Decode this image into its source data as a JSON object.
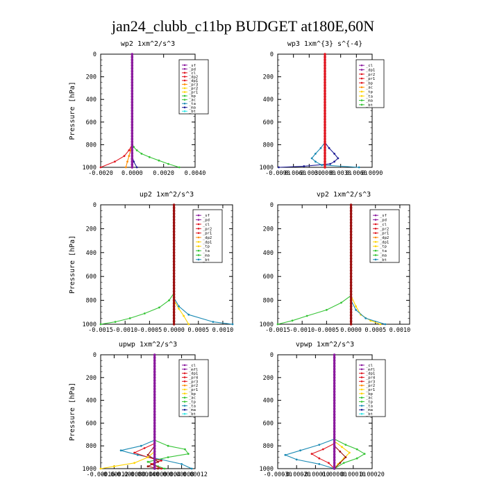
{
  "title": "jan24_clubb_c11bp  BUDGET at180E,60N",
  "colors": {
    "purple": "#8b1a9e",
    "red": "#e0141e",
    "orange": "#ff8c00",
    "yellow": "#ffd400",
    "green": "#35c435",
    "teal": "#1a8ab4",
    "navy": "#1e1e96",
    "cyan": "#2ee6e6",
    "darkred": "#9b1010"
  },
  "chart_data": [
    {
      "type": "line",
      "title": "wp2  1xm^2/s^3",
      "ylabel": "Pressure [hPa]",
      "y_ticks": [
        0,
        200,
        400,
        600,
        800,
        1000
      ],
      "x_tick_labels": [
        "-0.0020",
        "0.0000",
        "0.0020",
        "0.0040"
      ],
      "xlim": [
        -0.002,
        0.004
      ],
      "ylim": [
        1000,
        0
      ],
      "legend": [
        "_sf",
        "_pd",
        "_cl",
        "_dp2",
        "_dp1",
        "_pr3",
        "_pr2",
        "_pr1",
        "_bp",
        "_ac",
        "_ta",
        "_ma",
        "_bt"
      ],
      "series": [
        {
          "name": "_bp",
          "color": "green",
          "y": [
            790,
            820,
            850,
            880,
            910,
            940,
            970,
            1000
          ],
          "x": [
            0.0,
            0.0001,
            0.0003,
            0.0006,
            0.0011,
            0.0017,
            0.0023,
            0.003
          ]
        },
        {
          "name": "_pr3",
          "color": "orange",
          "y": [
            800,
            850,
            900,
            950,
            1000
          ],
          "x": [
            0.0,
            -0.0001,
            -0.0002,
            -0.0003,
            -0.0004
          ]
        },
        {
          "name": "_dp1",
          "color": "red",
          "y": [
            800,
            850,
            900,
            950,
            1000
          ],
          "x": [
            0.0,
            -0.0002,
            -0.0005,
            -0.0011,
            -0.002
          ]
        },
        {
          "name": "_ta",
          "color": "navy",
          "y": [
            900,
            950,
            1000
          ],
          "x": [
            0.0,
            0.0001,
            0.0003
          ]
        },
        {
          "name": "_pd",
          "color": "purple",
          "y": [
            0,
            1000
          ],
          "x": [
            0.0,
            0.0
          ]
        }
      ]
    },
    {
      "type": "line",
      "title": "wp3  1xm^{3} s^{-4}",
      "ylabel": "",
      "y_ticks": [
        0,
        200,
        400,
        600,
        800,
        1000
      ],
      "x_tick_labels": [
        "-0.0090",
        "-0.0060",
        "-0.0030",
        "0.0000",
        "0.0030",
        "0.0060",
        "0.0090"
      ],
      "xlim": [
        -0.009,
        0.009
      ],
      "ylim": [
        1000,
        0
      ],
      "legend": [
        "_cl",
        "_dp1",
        "_pr2",
        "_pr1",
        "_bp",
        "_ac",
        "_tp",
        "_ta",
        "_ma",
        "_bt"
      ],
      "series": [
        {
          "name": "_tp",
          "color": "navy",
          "y": [
            780,
            830,
            880,
            920,
            950,
            970,
            990,
            1000
          ],
          "x": [
            0.0,
            0.0008,
            0.0018,
            0.0025,
            0.0018,
            0.001,
            -0.004,
            -0.0088
          ]
        },
        {
          "name": "_ta",
          "color": "teal",
          "y": [
            780,
            830,
            880,
            920,
            950,
            980,
            1000
          ],
          "x": [
            0.0,
            -0.0008,
            -0.0018,
            -0.0025,
            -0.0018,
            -0.0006,
            0.0065
          ]
        },
        {
          "name": "_cl",
          "color": "red",
          "y": [
            0,
            1000
          ],
          "x": [
            0.0,
            0.0
          ]
        }
      ]
    },
    {
      "type": "line",
      "title": "up2  1xm^2/s^3",
      "ylabel": "Pressure [hPa]",
      "y_ticks": [
        0,
        200,
        400,
        600,
        800,
        1000
      ],
      "x_tick_labels": [
        "-0.0015",
        "-0.0010",
        "-0.0005",
        "0.0000",
        "0.0005",
        "0.0010"
      ],
      "xlim": [
        -0.0015,
        0.0012
      ],
      "ylim": [
        1000,
        0
      ],
      "legend": [
        "_sf",
        "_pd",
        "_cl",
        "_pr2",
        "_pr1",
        "_dp2",
        "_dp1",
        "_tp",
        "_ta",
        "_ma",
        "_bt"
      ],
      "series": [
        {
          "name": "_dp1",
          "color": "green",
          "y": [
            740,
            800,
            860,
            910,
            950,
            980,
            1000
          ],
          "x": [
            0.0,
            -0.0001,
            -0.0003,
            -0.0006,
            -0.0009,
            -0.0012,
            -0.0015
          ]
        },
        {
          "name": "_pr2",
          "color": "yellow",
          "y": [
            800,
            870,
            930,
            1000
          ],
          "x": [
            0.0,
            0.0001,
            0.0002,
            0.0003
          ]
        },
        {
          "name": "_tp",
          "color": "teal",
          "y": [
            780,
            850,
            920,
            980,
            1000
          ],
          "x": [
            0.0,
            0.0001,
            0.0003,
            0.0008,
            0.0012
          ]
        },
        {
          "name": "_cl",
          "color": "darkred",
          "y": [
            0,
            1000
          ],
          "x": [
            0.0,
            0.0
          ]
        }
      ]
    },
    {
      "type": "line",
      "title": "vp2  1xm^2/s^3",
      "ylabel": "",
      "y_ticks": [
        0,
        200,
        400,
        600,
        800,
        1000
      ],
      "x_tick_labels": [
        "-0.0015",
        "-0.0010",
        "-0.0005",
        "0.0000",
        "0.0005",
        "0.0010"
      ],
      "xlim": [
        -0.0015,
        0.0012
      ],
      "ylim": [
        1000,
        0
      ],
      "legend": [
        "_sf",
        "_pd",
        "_cl",
        "_pr2",
        "_pr1",
        "_dp2",
        "_dp1",
        "_tp",
        "_ta",
        "_ma",
        "_bt"
      ],
      "series": [
        {
          "name": "_dp1",
          "color": "green",
          "y": [
            760,
            820,
            880,
            930,
            970,
            1000
          ],
          "x": [
            0.0,
            -0.0002,
            -0.0005,
            -0.0009,
            -0.0012,
            -0.0015
          ]
        },
        {
          "name": "_pr2",
          "color": "yellow",
          "y": [
            760,
            850,
            920,
            970,
            1000
          ],
          "x": [
            0.0,
            0.0001,
            0.0002,
            0.0004,
            0.0006
          ]
        },
        {
          "name": "_tp",
          "color": "teal",
          "y": [
            800,
            880,
            950,
            1000
          ],
          "x": [
            0.0,
            0.0001,
            0.0003,
            0.0007
          ]
        },
        {
          "name": "_cl",
          "color": "darkred",
          "y": [
            0,
            1000
          ],
          "x": [
            0.0,
            0.0
          ]
        }
      ]
    },
    {
      "type": "line",
      "title": "upwp  1xm^2/s^3",
      "ylabel": "Pressure [hPa]",
      "y_ticks": [
        0,
        200,
        400,
        600,
        800,
        1000
      ],
      "x_tick_labels": [
        "-0.00016",
        "-0.00012",
        "-0.00008",
        "-0.00004",
        "0.00000",
        "0.00004",
        "0.00008",
        "0.00012"
      ],
      "xlim": [
        -0.00016,
        0.00012
      ],
      "ylim": [
        1000,
        0
      ],
      "legend": [
        "_cl",
        "_mfl",
        "_dp1",
        "_pr4",
        "_pr3",
        "_pr2",
        "_pr1",
        "_bp",
        "_ac",
        "_tp",
        "_ta",
        "_ma",
        "_bt"
      ],
      "series": [
        {
          "name": "_ta",
          "color": "teal",
          "y": [
            750,
            800,
            840,
            880,
            920,
            960,
            1000
          ],
          "x": [
            0.0,
            -4e-05,
            -0.0001,
            -5e-05,
            2e-05,
            8e-05,
            0.00011
          ]
        },
        {
          "name": "_bp",
          "color": "green",
          "y": [
            750,
            800,
            830,
            870,
            900,
            940,
            980,
            1000
          ],
          "x": [
            0.0,
            4e-05,
            9e-05,
            0.0001,
            4e-05,
            -2e-05,
            1e-05,
            3e-05
          ]
        },
        {
          "name": "_pr1",
          "color": "red",
          "y": [
            780,
            820,
            860,
            900,
            930,
            960,
            1000
          ],
          "x": [
            0.0,
            -3e-05,
            -6e-05,
            -2e-05,
            2e-05,
            -1e-05,
            2e-05
          ]
        },
        {
          "name": "_pr4",
          "color": "yellow",
          "y": [
            850,
            900,
            950,
            980,
            1000
          ],
          "x": [
            0.0,
            -2e-05,
            -6e-05,
            -0.00012,
            -0.00016
          ]
        },
        {
          "name": "_mfl",
          "color": "darkred",
          "y": [
            800,
            880,
            940,
            980,
            1000
          ],
          "x": [
            0.0,
            -2e-05,
            1e-05,
            -2e-05,
            1e-05
          ]
        },
        {
          "name": "_cl",
          "color": "purple",
          "y": [
            0,
            1000
          ],
          "x": [
            0.0,
            0.0
          ]
        }
      ]
    },
    {
      "type": "line",
      "title": "vpwp  1xm^2/s^3",
      "ylabel": "",
      "y_ticks": [
        0,
        200,
        400,
        600,
        800,
        1000
      ],
      "x_tick_labels": [
        "-0.00030",
        "-0.00020",
        "-0.00010",
        "0.00000",
        "0.00010",
        "0.00020"
      ],
      "xlim": [
        -0.0003,
        0.0002
      ],
      "ylim": [
        1000,
        0
      ],
      "legend": [
        "_cl",
        "_mfl",
        "_dp1",
        "_pr4",
        "_pr3",
        "_pr2",
        "_pr1",
        "_bp",
        "_ac",
        "_tp",
        "_ta",
        "_ma",
        "_bt"
      ],
      "series": [
        {
          "name": "_ta",
          "color": "teal",
          "y": [
            740,
            790,
            840,
            880,
            920,
            960,
            1000
          ],
          "x": [
            0.0,
            -8e-05,
            -0.00018,
            -0.00026,
            -0.0002,
            -8e-05,
            0.0
          ]
        },
        {
          "name": "_bp",
          "color": "green",
          "y": [
            740,
            790,
            830,
            870,
            910,
            950,
            1000
          ],
          "x": [
            0.0,
            6e-05,
            0.00012,
            0.00016,
            0.00012,
            5e-05,
            0.0
          ]
        },
        {
          "name": "_pr1",
          "color": "red",
          "y": [
            780,
            830,
            870,
            910,
            950,
            1000
          ],
          "x": [
            0.0,
            -6e-05,
            -0.00012,
            -8e-05,
            -3e-05,
            0.0
          ]
        },
        {
          "name": "_pr2",
          "color": "yellow",
          "y": [
            760,
            810,
            860,
            910,
            960,
            1000
          ],
          "x": [
            0.0,
            4e-05,
            8e-05,
            5e-05,
            2e-05,
            0.0
          ]
        },
        {
          "name": "_mfl",
          "color": "darkred",
          "y": [
            800,
            850,
            900,
            950,
            1000
          ],
          "x": [
            0.0,
            3e-05,
            6e-05,
            3e-05,
            0.0
          ]
        },
        {
          "name": "_cl",
          "color": "purple",
          "y": [
            0,
            1000
          ],
          "x": [
            0.0,
            0.0
          ]
        }
      ]
    }
  ]
}
